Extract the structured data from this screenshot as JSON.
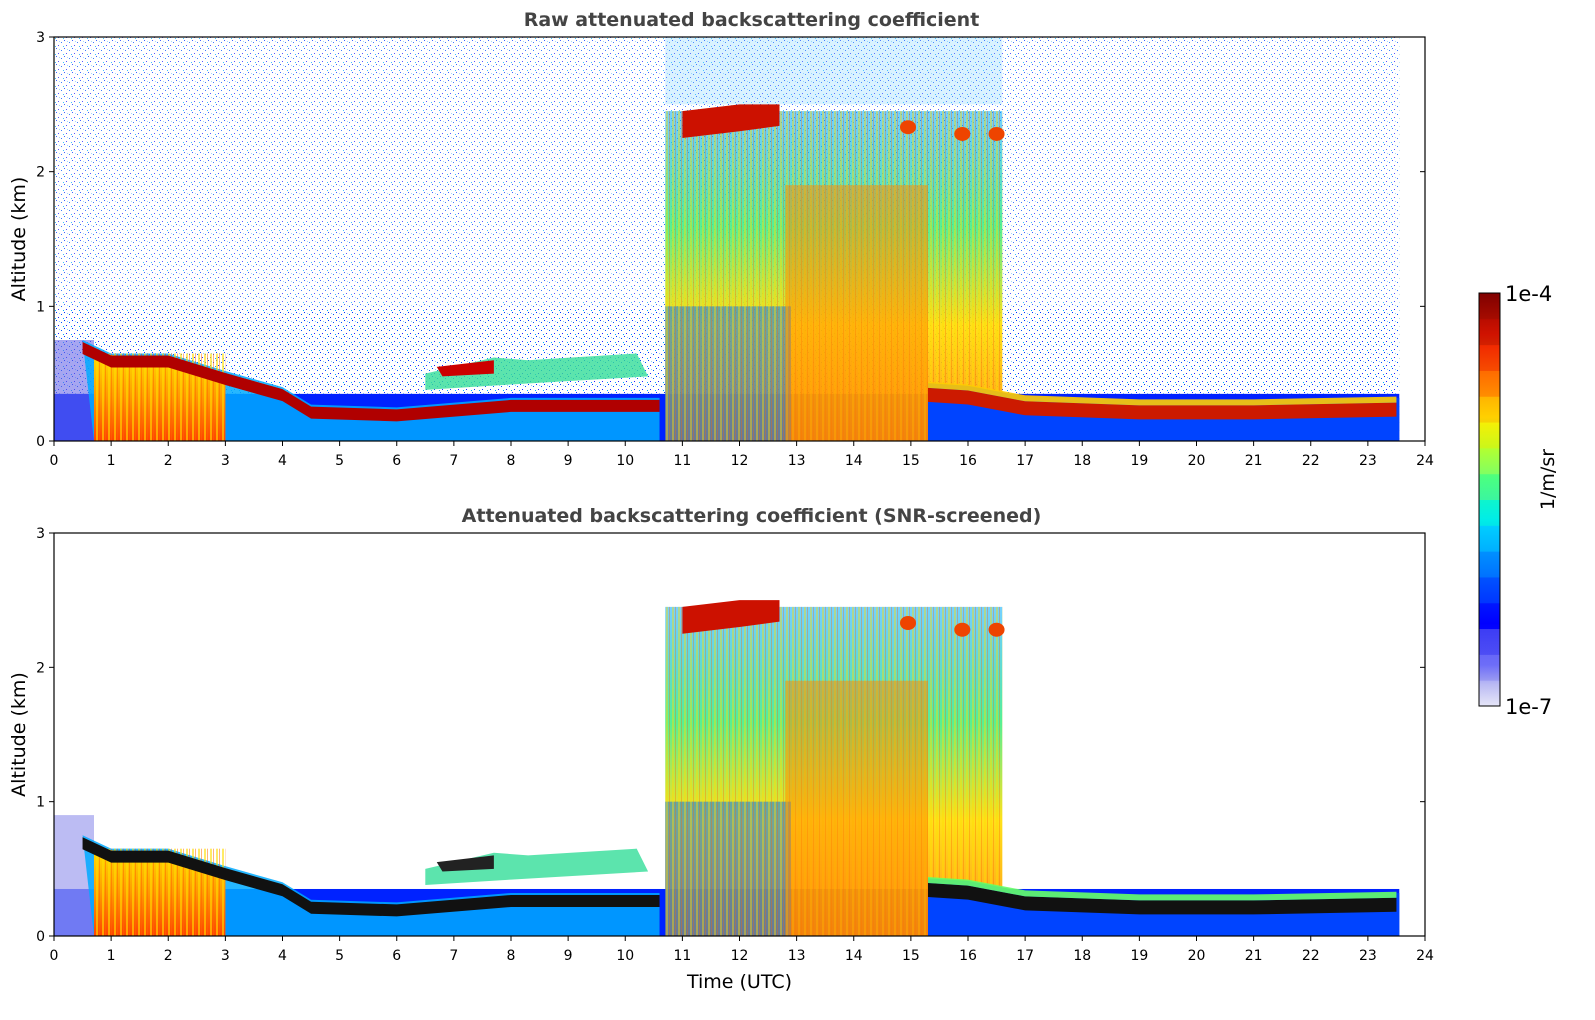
{
  "chart_data": [
    {
      "type": "heatmap",
      "id": "raw",
      "title": "Raw attenuated backscattering coefficient",
      "xlabel": "",
      "ylabel": "Altitude (km)",
      "xlim": [
        0,
        24
      ],
      "ylim": [
        0,
        3
      ],
      "x_ticks": [
        0,
        1,
        2,
        3,
        4,
        5,
        6,
        7,
        8,
        9,
        10,
        11,
        12,
        13,
        14,
        15,
        16,
        17,
        18,
        19,
        20,
        21,
        22,
        23,
        24
      ],
      "y_ticks": [
        0,
        1,
        2,
        3
      ],
      "data_end_time": 23.55,
      "features": {
        "nocturnal_layer_top_km": [
          [
            0.5,
            0.75
          ],
          [
            1,
            0.65
          ],
          [
            2,
            0.65
          ],
          [
            3,
            0.52
          ],
          [
            4,
            0.4
          ],
          [
            4.5,
            0.27
          ],
          [
            6,
            0.25
          ],
          [
            8,
            0.32
          ],
          [
            10,
            0.32
          ],
          [
            10.6,
            0.32
          ]
        ],
        "afternoon_layer_km": [
          [
            15.3,
            0.38
          ],
          [
            16,
            0.36
          ],
          [
            17,
            0.28
          ],
          [
            19,
            0.25
          ],
          [
            21,
            0.25
          ],
          [
            23.5,
            0.27
          ]
        ],
        "cloud_top_deck_km": [
          [
            11,
            2.35
          ],
          [
            12,
            2.4
          ],
          [
            12.6,
            2.42
          ]
        ],
        "mixed_layer_time_range_utc": [
          10.7,
          16.6
        ]
      }
    },
    {
      "type": "heatmap",
      "id": "snr",
      "title": "Attenuated backscattering coefficient (SNR-screened)",
      "xlabel": "Time (UTC)",
      "ylabel": "Altitude (km)",
      "xlim": [
        0,
        24
      ],
      "ylim": [
        0,
        3
      ],
      "x_ticks": [
        0,
        1,
        2,
        3,
        4,
        5,
        6,
        7,
        8,
        9,
        10,
        11,
        12,
        13,
        14,
        15,
        16,
        17,
        18,
        19,
        20,
        21,
        22,
        23,
        24
      ],
      "y_ticks": [
        0,
        1,
        2,
        3
      ],
      "data_end_time": 23.55
    }
  ],
  "colorbar": {
    "label": "1/m/sr",
    "max_label": "1e-4",
    "min_label": "1e-7",
    "colors": [
      "#e6e6f8",
      "#b8b8f0",
      "#7f7fe8",
      "#0000ff",
      "#0044ff",
      "#0088ff",
      "#00ccff",
      "#00ffcc",
      "#66ff66",
      "#ccff33",
      "#ffee00",
      "#ffaa00",
      "#ff5500",
      "#ee1100",
      "#aa0000",
      "#800000"
    ]
  }
}
